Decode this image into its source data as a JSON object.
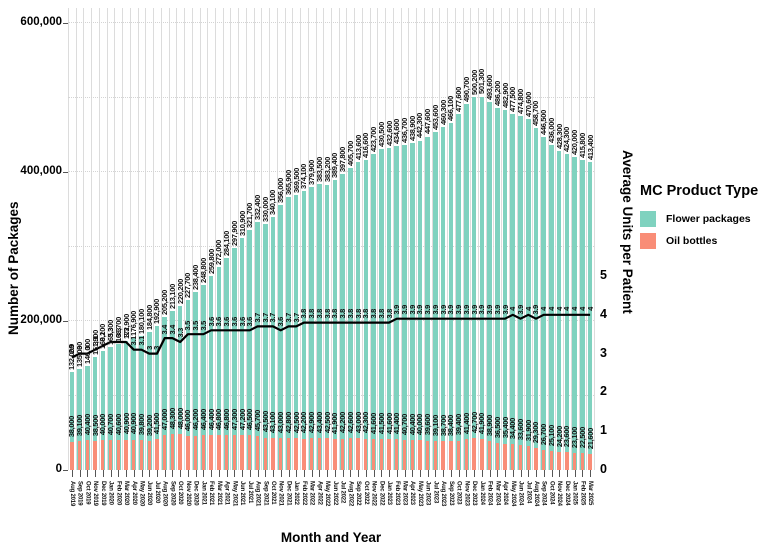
{
  "chart_data": {
    "type": "bar",
    "title": "",
    "xlabel": "Month and Year",
    "ylabel_left": "Number of Packages",
    "ylabel_right": "Average Units per Patient",
    "legend_title": "MC Product Type",
    "legend": [
      {
        "label": "Flower packages",
        "color": "#7fd2bf"
      },
      {
        "label": "Oil bottles",
        "color": "#f98d77"
      }
    ],
    "left_axis_ticks": [
      "0",
      "200,000",
      "400,000",
      "600,000"
    ],
    "left_axis_range": [
      0,
      620000
    ],
    "right_axis_ticks": [
      "0",
      "1",
      "2",
      "3",
      "4",
      "5"
    ],
    "right_axis_range_visible": [
      0,
      5
    ],
    "grid": true,
    "legend_position": "right",
    "line_color": "#000000",
    "x": [
      "Aug 2019",
      "Sep 2019",
      "Oct 2019",
      "Nov 2019",
      "Dec 2019",
      "Jan 2020",
      "Feb 2020",
      "Mar 2020",
      "Apr 2020",
      "May 2020",
      "Jun 2020",
      "Jul 2020",
      "Aug 2020",
      "Sep 2020",
      "Oct 2020",
      "Nov 2020",
      "Dec 2020",
      "Jan 2021",
      "Feb 2021",
      "Mar 2021",
      "Apr 2021",
      "May 2021",
      "Jun 2021",
      "Jul 2021",
      "Aug 2021",
      "Sep 2021",
      "Oct 2021",
      "Nov 2021",
      "Dec 2021",
      "Jan 2022",
      "Feb 2022",
      "Mar 2022",
      "Apr 2022",
      "May 2022",
      "Jun 2022",
      "Jul 2022",
      "Aug 2022",
      "Sep 2022",
      "Oct 2022",
      "Nov 2022",
      "Dec 2022",
      "Jan 2023",
      "Feb 2023",
      "Mar 2023",
      "Apr 2023",
      "May 2023",
      "Jun 2023",
      "Jul 2023",
      "Aug 2023",
      "Sep 2023",
      "Oct 2023",
      "Nov 2023",
      "Dec 2023",
      "Jan 2024",
      "Feb 2024",
      "Mar 2024",
      "Apr 2024",
      "May 2024",
      "Jun 2024",
      "Jul 2024",
      "Aug 2024",
      "Sep 2024",
      "Oct 2024",
      "Nov 2024",
      "Dec 2024",
      "Jan 2025",
      "Feb 2025",
      "Mar 2025"
    ],
    "series": [
      {
        "name": "Flower packages",
        "type": "bar",
        "axis": "left",
        "color": "#7fd2bf",
        "values": [
          132000,
          135000,
          140000,
          151900,
          160100,
          165300,
          168700,
          172900,
          176900,
          180100,
          184800,
          192900,
          205200,
          213100,
          220200,
          227700,
          238400,
          248800,
          259800,
          272000,
          284100,
          297900,
          310900,
          321700,
          332400,
          330000,
          340100,
          356000,
          365900,
          369500,
          374100,
          379900,
          383500,
          383200,
          389400,
          397800,
          405700,
          413600,
          416600,
          423700,
          430500,
          432600,
          434600,
          436700,
          438900,
          442300,
          447600,
          453600,
          460300,
          466100,
          477600,
          490700,
          500200,
          501300,
          493600,
          486200,
          482900,
          477500,
          474800,
          470600,
          458700,
          446500,
          436000,
          428300,
          424300,
          420000,
          415800,
          413400
        ]
      },
      {
        "name": "Oil bottles",
        "type": "bar",
        "axis": "left",
        "color": "#f98d77",
        "values": [
          38000,
          39100,
          40400,
          38500,
          40000,
          40700,
          40600,
          40900,
          40900,
          39800,
          39200,
          41500,
          47000,
          48300,
          48000,
          46000,
          46200,
          46400,
          46400,
          46800,
          46800,
          47300,
          47200,
          46500,
          45700,
          43500,
          43100,
          43000,
          42800,
          42500,
          42200,
          42900,
          43400,
          42500,
          41900,
          42200,
          42600,
          43000,
          42300,
          41600,
          41500,
          41600,
          41400,
          40700,
          40400,
          40000,
          39600,
          39100,
          38700,
          38400,
          39400,
          41400,
          42700,
          41900,
          38900,
          36500,
          35400,
          34400,
          33600,
          31900,
          29300,
          26700,
          25100,
          24200,
          23600,
          23100,
          22500,
          21600
        ]
      },
      {
        "name": "Average units per patient",
        "type": "line",
        "axis": "right",
        "color": "#000000",
        "values": [
          2.9,
          3,
          3,
          3.1,
          3.2,
          3.3,
          3.3,
          3.3,
          3.1,
          3.1,
          3,
          3,
          3.4,
          3.4,
          3.3,
          3.5,
          3.5,
          3.5,
          3.6,
          3.6,
          3.6,
          3.6,
          3.6,
          3.6,
          3.7,
          3.7,
          3.7,
          3.6,
          3.7,
          3.7,
          3.8,
          3.8,
          3.8,
          3.8,
          3.8,
          3.8,
          3.8,
          3.8,
          3.8,
          3.8,
          3.8,
          3.8,
          3.9,
          3.9,
          3.9,
          3.9,
          3.9,
          3.9,
          3.9,
          3.9,
          3.9,
          3.9,
          3.9,
          3.9,
          3.9,
          3.9,
          3.9,
          4,
          3.9,
          4,
          3.9,
          4,
          4,
          4,
          4,
          4,
          4,
          4
        ]
      }
    ]
  }
}
